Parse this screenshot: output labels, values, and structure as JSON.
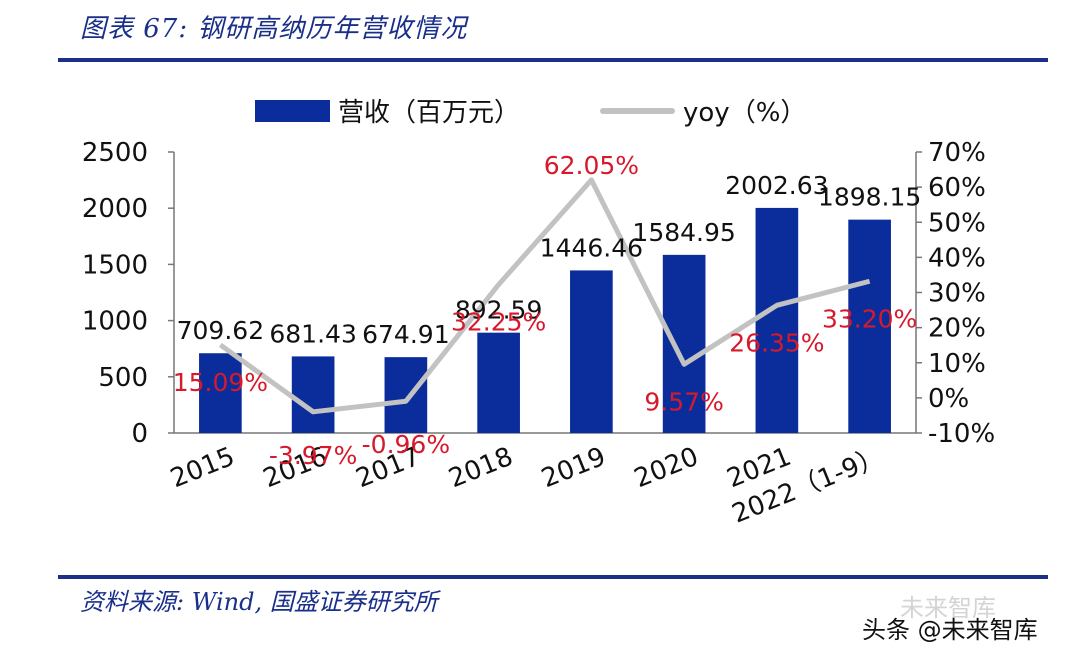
{
  "title": "图表 67: 钢研高纳历年营收情况",
  "source": "资料来源: Wind, 国盛证券研究所",
  "watermark": "头条 @未来智库",
  "watermark_ghost": "未来智库",
  "colors": {
    "bar": "#0b2d9b",
    "line": "#c2c2c2",
    "yoy_label": "#d7192c",
    "accent": "#1a2f8a"
  },
  "chart_data": {
    "type": "bar",
    "categories": [
      "2015",
      "2016",
      "2017",
      "2018",
      "2019",
      "2020",
      "2021",
      "2022（1-9）"
    ],
    "series": [
      {
        "name": "营收（百万元）",
        "type": "bar",
        "axis": "left",
        "values": [
          709.62,
          681.43,
          674.91,
          892.59,
          1446.46,
          1584.95,
          2002.63,
          1898.15
        ],
        "labels": [
          "709.62",
          "681.43",
          "674.91",
          "892.59",
          "1446.46",
          "1584.95",
          "2002.63",
          "1898.15"
        ]
      },
      {
        "name": "yoy（%）",
        "type": "line",
        "axis": "right",
        "values": [
          15.09,
          -3.97,
          -0.96,
          32.25,
          62.05,
          9.57,
          26.35,
          33.2
        ],
        "labels": [
          "15.09%",
          "-3.97%",
          "-0.96%",
          "32.25%",
          "62.05%",
          "9.57%",
          "26.35%",
          "33.20%"
        ]
      }
    ],
    "y_left": {
      "min": 0,
      "max": 2500,
      "ticks": [
        "0",
        "500",
        "1000",
        "1500",
        "2000",
        "2500"
      ]
    },
    "y_right": {
      "min": -10,
      "max": 70,
      "ticks": [
        "-10%",
        "0%",
        "10%",
        "20%",
        "30%",
        "40%",
        "50%",
        "60%",
        "70%"
      ]
    },
    "legend": "top",
    "grid": false
  }
}
